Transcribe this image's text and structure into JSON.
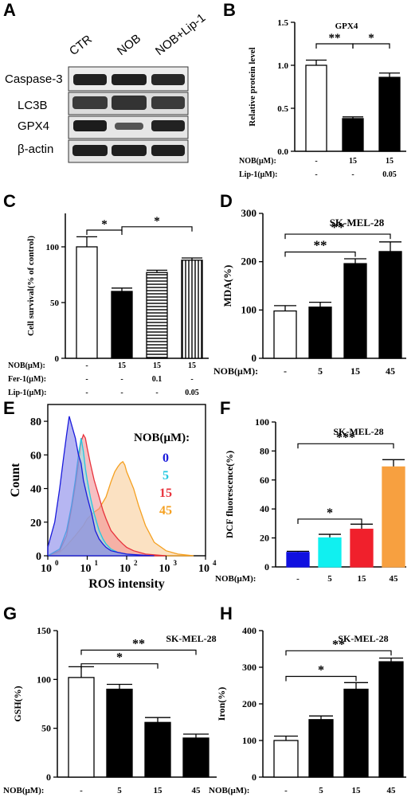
{
  "panels": {
    "A": {
      "letter": "A",
      "lanes": [
        "CTR",
        "NOB",
        "NOB+Lip-1"
      ],
      "rows": [
        "Caspase-3",
        "LC3B",
        "GPX4",
        "β-actin"
      ]
    },
    "B": {
      "letter": "B",
      "chart_data": {
        "type": "bar",
        "title": "GPX4",
        "ylabel": "Relative protein level",
        "ylim": [
          0,
          1.5
        ],
        "yticks": [
          "0.0",
          "0.5",
          "1.0",
          "1.5"
        ],
        "yticks_v": [
          0,
          0.5,
          1.0,
          1.5
        ],
        "values": [
          1.0,
          0.38,
          0.86
        ],
        "errors": [
          0.06,
          0.02,
          0.05
        ],
        "fills": [
          "#ffffff",
          "#000000",
          "#000000"
        ],
        "rows": [
          {
            "label": "NOB(μM):",
            "vals": [
              "-",
              "15",
              "15"
            ]
          },
          {
            "label": "Lip-1(μM):",
            "vals": [
              "-",
              "-",
              "0.05"
            ]
          }
        ],
        "annotations": [
          {
            "text": "**",
            "from": 0,
            "to": 1,
            "y": 1.25
          },
          {
            "text": "*",
            "from": 1,
            "to": 2,
            "y": 1.25
          }
        ]
      }
    },
    "C": {
      "letter": "C",
      "chart_data": {
        "type": "bar",
        "title": "",
        "ylabel": "Cell survival(% of control)",
        "ylim": [
          0,
          130
        ],
        "yticks": [
          "0",
          "50",
          "100"
        ],
        "yticks_v": [
          0,
          50,
          100
        ],
        "values": [
          100,
          60,
          77,
          88
        ],
        "errors": [
          9,
          3,
          2,
          2
        ],
        "fills": [
          "#ffffff",
          "#000000",
          "hstripe",
          "vstripe"
        ],
        "rows": [
          {
            "label": "NOB(μM):",
            "vals": [
              "-",
              "15",
              "15",
              "15"
            ]
          },
          {
            "label": "Fer-1(μM):",
            "vals": [
              "-",
              "-",
              "0.1",
              "-"
            ]
          },
          {
            "label": "Lip-1(μM):",
            "vals": [
              "-",
              "-",
              "-",
              "0.05"
            ]
          }
        ],
        "annotations": [
          {
            "text": "*",
            "from": 0,
            "to": 1,
            "y": 115
          },
          {
            "text": "*",
            "from": 1,
            "to": 3,
            "y": 118
          }
        ]
      }
    },
    "D": {
      "letter": "D",
      "chart_data": {
        "type": "bar",
        "title": "SK-MEL-28",
        "ylabel": "MDA(%)",
        "ylim": [
          0,
          300
        ],
        "yticks": [
          "0",
          "100",
          "200",
          "300"
        ],
        "yticks_v": [
          0,
          100,
          200,
          300
        ],
        "values": [
          98,
          106,
          196,
          221
        ],
        "errors": [
          11,
          10,
          10,
          20
        ],
        "fills": [
          "#ffffff",
          "#000000",
          "#000000",
          "#000000"
        ],
        "rows": [
          {
            "label": "NOB(μM):",
            "vals": [
              "-",
              "5",
              "15",
              "45"
            ]
          }
        ],
        "annotations": [
          {
            "text": "**",
            "from": 0,
            "to": 3,
            "y": 257
          },
          {
            "text": "**",
            "from": 0,
            "to": 2,
            "y": 220
          }
        ]
      }
    },
    "E": {
      "letter": "E",
      "chart_data": {
        "type": "area",
        "ylabel": "Count",
        "xlabel": "ROS intensity",
        "xscale": "log",
        "xlim": [
          1,
          10000
        ],
        "ylim": [
          0,
          90
        ],
        "yticks": [
          "0",
          "20",
          "40",
          "60",
          "80"
        ],
        "yticks_v": [
          0,
          20,
          40,
          60,
          80
        ],
        "xticks": [
          "10",
          "10",
          "10",
          "10",
          "10"
        ],
        "xtick_exp": [
          "0",
          "1",
          "2",
          "3",
          "4"
        ],
        "legend_title": "NOB(μM):",
        "series": [
          {
            "name": "0",
            "color": "#1a1adc",
            "fill": "#7a7ae8",
            "x": [
              1,
              1.5,
              2,
              2.5,
              3,
              3.5,
              4,
              5,
              6,
              7,
              8,
              10,
              13,
              16,
              20,
              25,
              30,
              40,
              60,
              100,
              200,
              500
            ],
            "y": [
              5,
              20,
              40,
              58,
              72,
              83,
              78,
              70,
              60,
              55,
              45,
              35,
              25,
              15,
              10,
              7,
              5,
              3,
              2,
              1,
              0.5,
              0
            ]
          },
          {
            "name": "5",
            "color": "#22c8e0",
            "fill": "#8fe6f0",
            "x": [
              1,
              2,
              3,
              4,
              5,
              6,
              7,
              8,
              9,
              10,
              12,
              15,
              20,
              25,
              30,
              40,
              60,
              100,
              200
            ],
            "y": [
              0,
              4,
              15,
              30,
              45,
              60,
              70,
              62,
              52,
              45,
              35,
              25,
              15,
              10,
              7,
              4,
              2,
              1,
              0
            ]
          },
          {
            "name": "15",
            "color": "#e8323c",
            "fill": "#f08a90",
            "x": [
              1,
              2,
              3,
              4,
              5,
              6,
              7,
              8,
              9,
              10,
              12,
              15,
              20,
              25,
              30,
              40,
              60,
              80,
              100,
              150,
              300,
              1000
            ],
            "y": [
              0,
              3,
              12,
              28,
              42,
              55,
              68,
              72,
              70,
              64,
              55,
              45,
              35,
              27,
              22,
              15,
              10,
              7,
              5,
              3,
              1,
              0
            ]
          },
          {
            "name": "45",
            "color": "#f5a020",
            "fill": "#f8c890",
            "x": [
              1,
              2,
              3,
              5,
              8,
              10,
              15,
              20,
              30,
              40,
              50,
              60,
              70,
              80,
              90,
              100,
              150,
              200,
              300,
              500,
              1000,
              2000,
              5000
            ],
            "y": [
              0,
              2,
              6,
              12,
              18,
              22,
              26,
              28,
              35,
              44,
              50,
              53,
              55,
              56,
              54,
              50,
              40,
              30,
              18,
              8,
              3,
              1,
              0
            ]
          }
        ]
      }
    },
    "F": {
      "letter": "F",
      "chart_data": {
        "type": "bar",
        "title": "SK-MEL-28",
        "ylabel": "DCF fluorescence(%)",
        "ylim": [
          0,
          100
        ],
        "yticks": [
          "0",
          "20",
          "40",
          "60",
          "80",
          "100"
        ],
        "yticks_v": [
          0,
          20,
          40,
          60,
          80,
          100
        ],
        "values": [
          10,
          20,
          26,
          69
        ],
        "errors": [
          0.8,
          2.5,
          3.5,
          5
        ],
        "fills": [
          "#1010e0",
          "#10f0f0",
          "#f0202c",
          "#f7a040"
        ],
        "rows": [
          {
            "label": "NOB(μM):",
            "vals": [
              "-",
              "5",
              "15",
              "45"
            ]
          }
        ],
        "annotations": [
          {
            "text": "***",
            "from": 0,
            "to": 3,
            "y": 85
          },
          {
            "text": "*",
            "from": 0,
            "to": 2,
            "y": 33
          }
        ]
      }
    },
    "G": {
      "letter": "G",
      "chart_data": {
        "type": "bar",
        "title": "SK-MEL-28",
        "ylabel": "GSH(%)",
        "ylim": [
          0,
          150
        ],
        "yticks": [
          "0",
          "50",
          "100",
          "150"
        ],
        "yticks_v": [
          0,
          50,
          100,
          150
        ],
        "values": [
          102,
          90,
          56,
          40
        ],
        "errors": [
          11,
          5,
          5,
          4
        ],
        "fills": [
          "#ffffff",
          "#000000",
          "#000000",
          "#000000"
        ],
        "rows": [
          {
            "label": "NOB(μM):",
            "vals": [
              "-",
              "5",
              "15",
              "45"
            ]
          }
        ],
        "annotations": [
          {
            "text": "**",
            "from": 0,
            "to": 3,
            "y": 130
          },
          {
            "text": "*",
            "from": 0,
            "to": 2,
            "y": 116
          }
        ]
      }
    },
    "H": {
      "letter": "H",
      "chart_data": {
        "type": "bar",
        "title": "SK-MEL-28",
        "ylabel": "Iron(%)",
        "ylim": [
          0,
          400
        ],
        "yticks": [
          "0",
          "100",
          "200",
          "300",
          "400"
        ],
        "yticks_v": [
          0,
          100,
          200,
          300,
          400
        ],
        "values": [
          100,
          157,
          240,
          315
        ],
        "errors": [
          12,
          10,
          18,
          10
        ],
        "fills": [
          "#ffffff",
          "#000000",
          "#000000",
          "#000000"
        ],
        "rows": [
          {
            "label": "NOB(μM):",
            "vals": [
              "-",
              "5",
              "15",
              "45"
            ]
          }
        ],
        "annotations": [
          {
            "text": "**",
            "from": 0,
            "to": 3,
            "y": 345
          },
          {
            "text": "*",
            "from": 0,
            "to": 2,
            "y": 275
          }
        ]
      }
    }
  }
}
